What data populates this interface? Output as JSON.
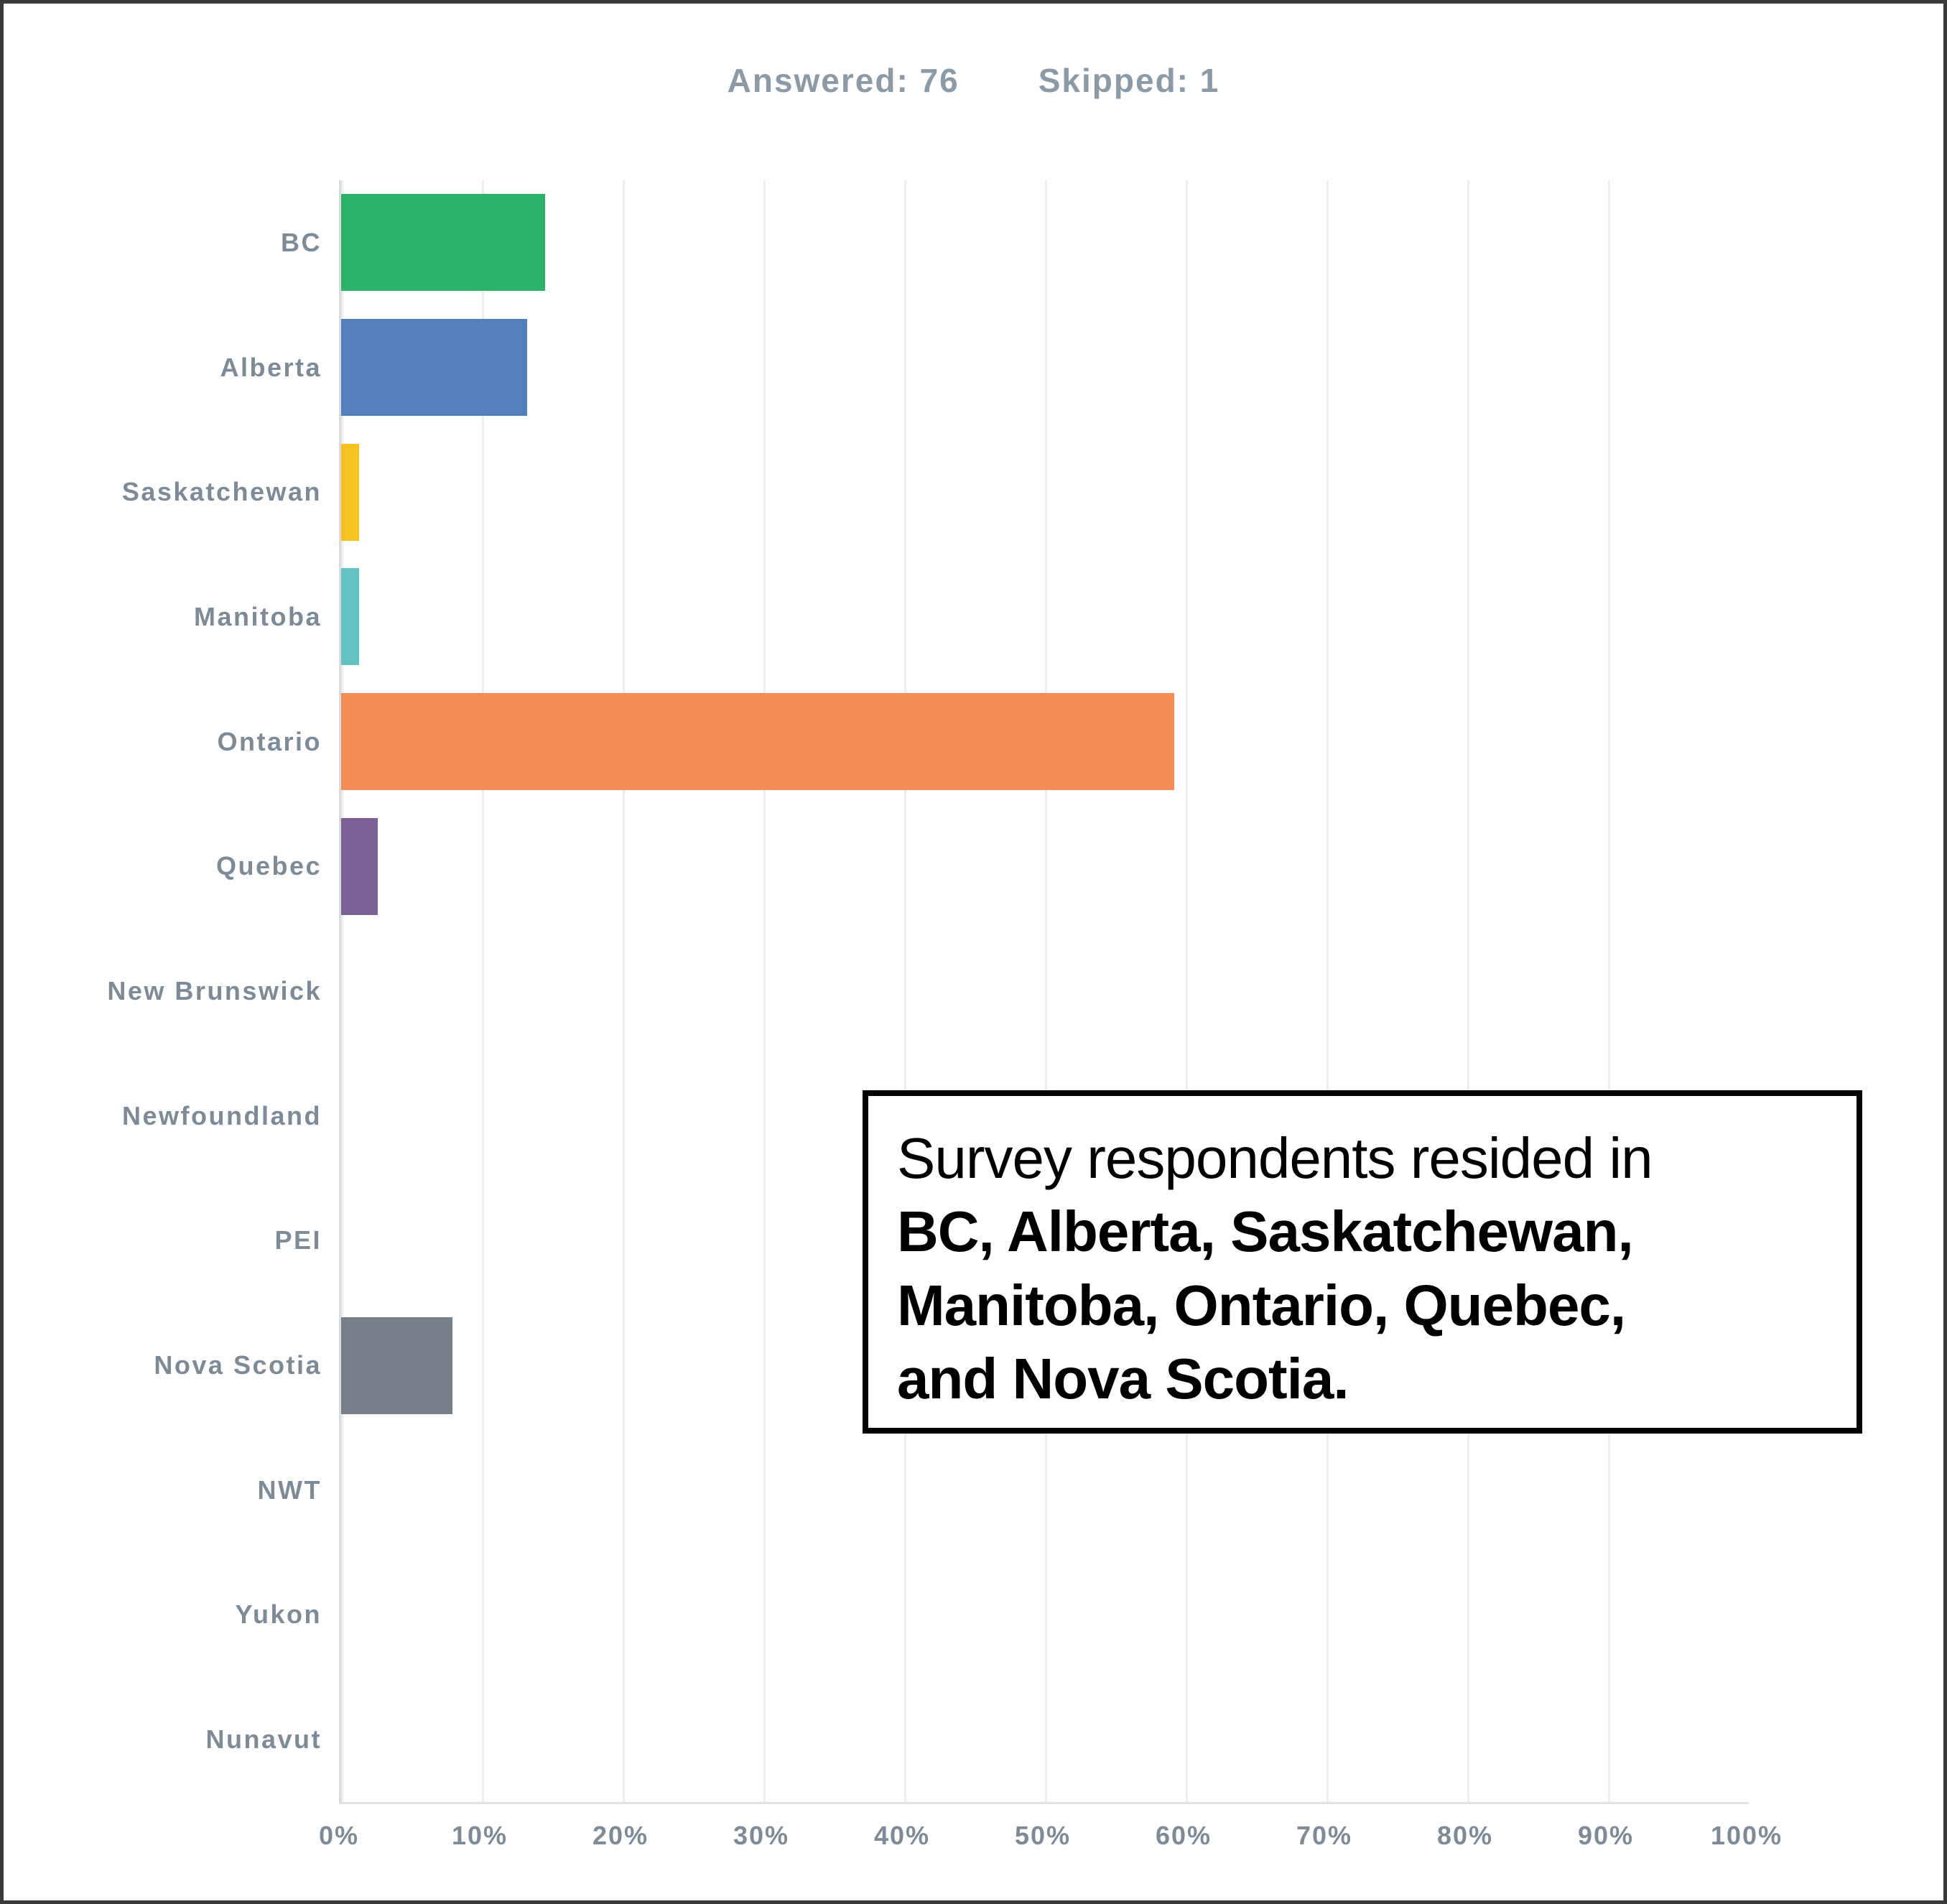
{
  "header": {
    "answered": "Answered: 76",
    "skipped": "Skipped: 1"
  },
  "chart_data": {
    "type": "bar",
    "orientation": "horizontal",
    "title": "",
    "xlabel": "",
    "ylabel": "",
    "categories": [
      "BC",
      "Alberta",
      "Saskatchewan",
      "Manitoba",
      "Ontario",
      "Quebec",
      "New Brunswick",
      "Newfoundland",
      "PEI",
      "Nova Scotia",
      "NWT",
      "Yukon",
      "Nunavut"
    ],
    "values": [
      14.5,
      13.2,
      1.3,
      1.3,
      59.2,
      2.6,
      0,
      0,
      0,
      7.9,
      0,
      0,
      0
    ],
    "values_unit": "%",
    "colors": [
      "#2db26a",
      "#5280bd",
      "#f5c221",
      "#63c3c2",
      "#f58b55",
      "#7c6095",
      "#778089",
      "#778089",
      "#778089",
      "#778089",
      "#778089",
      "#778089",
      "#778089"
    ],
    "xlim": [
      0,
      100
    ],
    "x_tick_labels": [
      "0%",
      "10%",
      "20%",
      "30%",
      "40%",
      "50%",
      "60%",
      "70%",
      "80%",
      "90%",
      "100%"
    ],
    "grid": true,
    "legend": false
  },
  "annotation": {
    "lines": [
      "Survey respondents resided in",
      "BC, Alberta, Saskatchewan,",
      "Manitoba, Ontario, Quebec,",
      "and Nova Scotia."
    ]
  },
  "colors": {
    "label_text": "#7e8b97",
    "header_text": "#8c9aa6",
    "gridline": "#ededed",
    "annotation_border": "#000000"
  }
}
